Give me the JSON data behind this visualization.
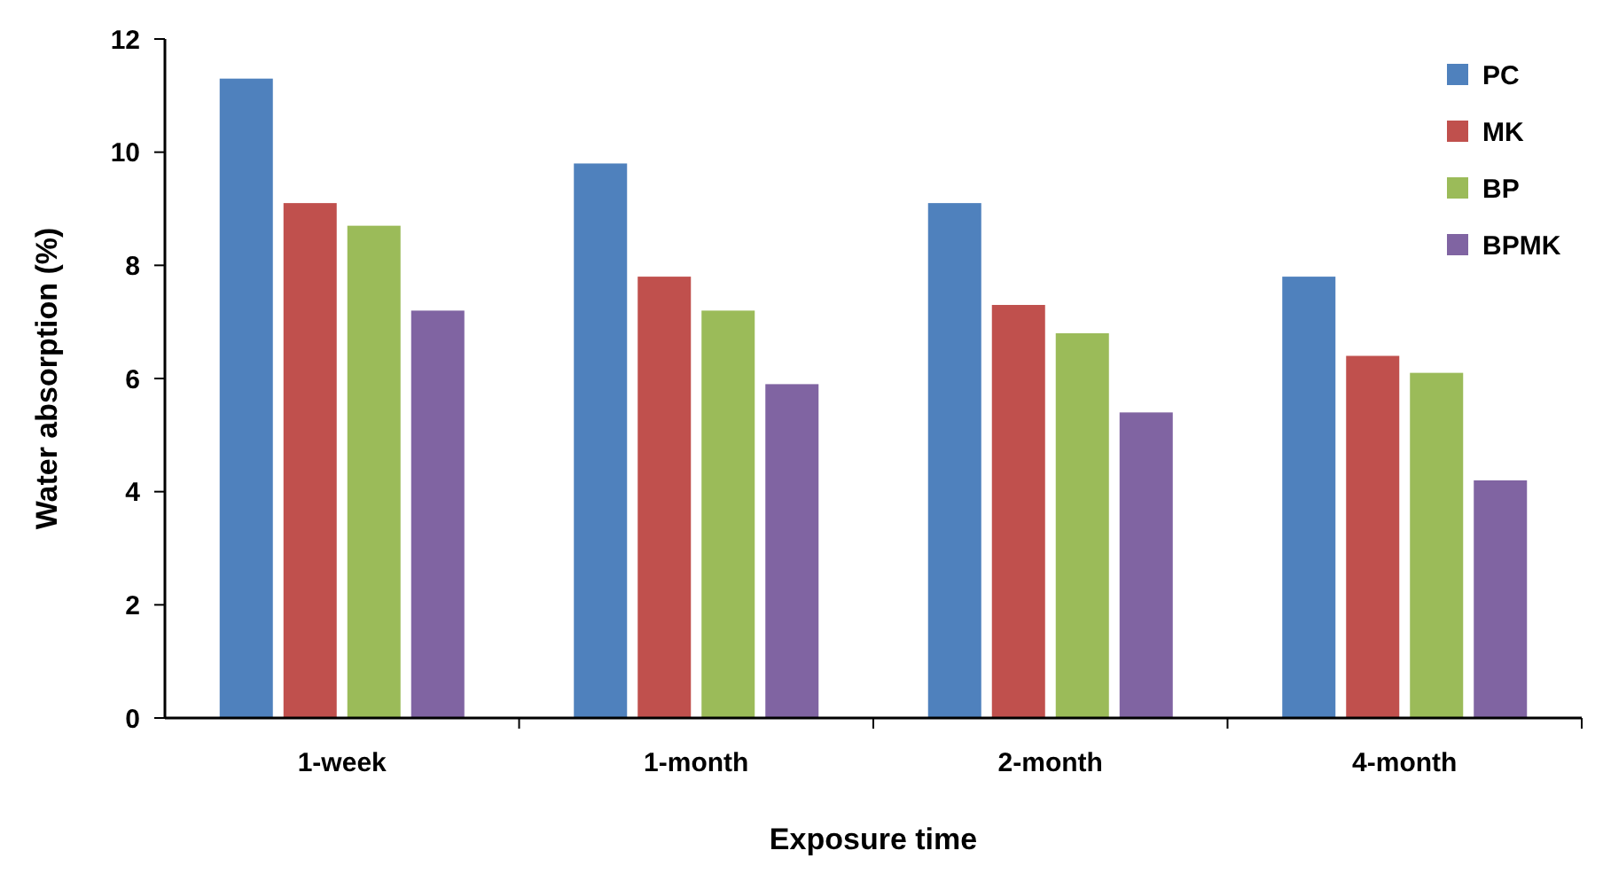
{
  "chart_data": {
    "type": "bar",
    "xlabel": "Exposure time",
    "ylabel": "Water absorption (%)",
    "categories": [
      "1-week",
      "1-month",
      "2-month",
      "4-month"
    ],
    "series": [
      {
        "name": "PC",
        "color": "#4f81bd",
        "values": [
          11.3,
          9.8,
          9.1,
          7.8
        ]
      },
      {
        "name": "MK",
        "color": "#c0504d",
        "values": [
          9.1,
          7.8,
          7.3,
          6.4
        ]
      },
      {
        "name": "BP",
        "color": "#9bbb59",
        "values": [
          8.7,
          7.2,
          6.8,
          6.1
        ]
      },
      {
        "name": "BPMK",
        "color": "#8064a2",
        "values": [
          7.2,
          5.9,
          5.4,
          4.2
        ]
      }
    ],
    "ylim": [
      0,
      12
    ],
    "yticks": [
      0,
      2,
      4,
      6,
      8,
      10,
      12
    ],
    "grid": false,
    "legend": "top right"
  }
}
